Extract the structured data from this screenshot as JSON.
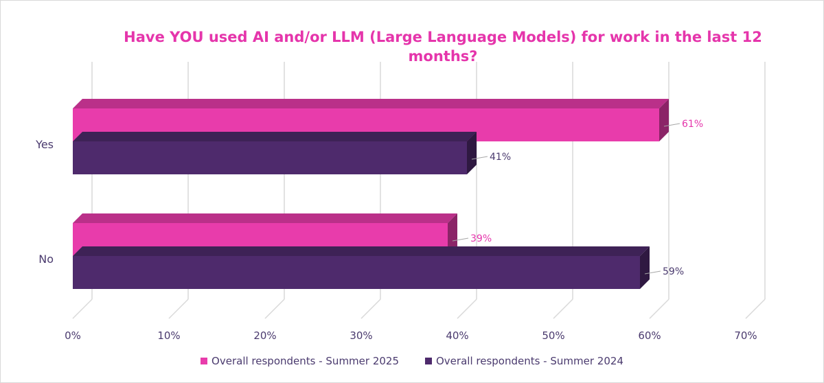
{
  "chart_data": {
    "type": "bar",
    "orientation": "horizontal",
    "title": "Have YOU used AI and/or LLM (Large Language Models) for work in the last 12 months?",
    "categories": [
      "Yes",
      "No"
    ],
    "series": [
      {
        "name": "Overall respondents - Summer 2025",
        "values": [
          61,
          39
        ],
        "labels": [
          "61%",
          "39%"
        ],
        "color": "#e83cab"
      },
      {
        "name": "Overall respondents - Summer 2024",
        "values": [
          41,
          59
        ],
        "labels": [
          "41%",
          "59%"
        ],
        "color": "#4e2a6c"
      }
    ],
    "xlim": [
      0,
      70
    ],
    "x_ticks": [
      0,
      10,
      20,
      30,
      40,
      50,
      60,
      70
    ],
    "x_tick_labels": [
      "0%",
      "10%",
      "20%",
      "30%",
      "40%",
      "50%",
      "60%",
      "70%"
    ],
    "grid": true,
    "legend_position": "bottom",
    "style": "3d"
  }
}
